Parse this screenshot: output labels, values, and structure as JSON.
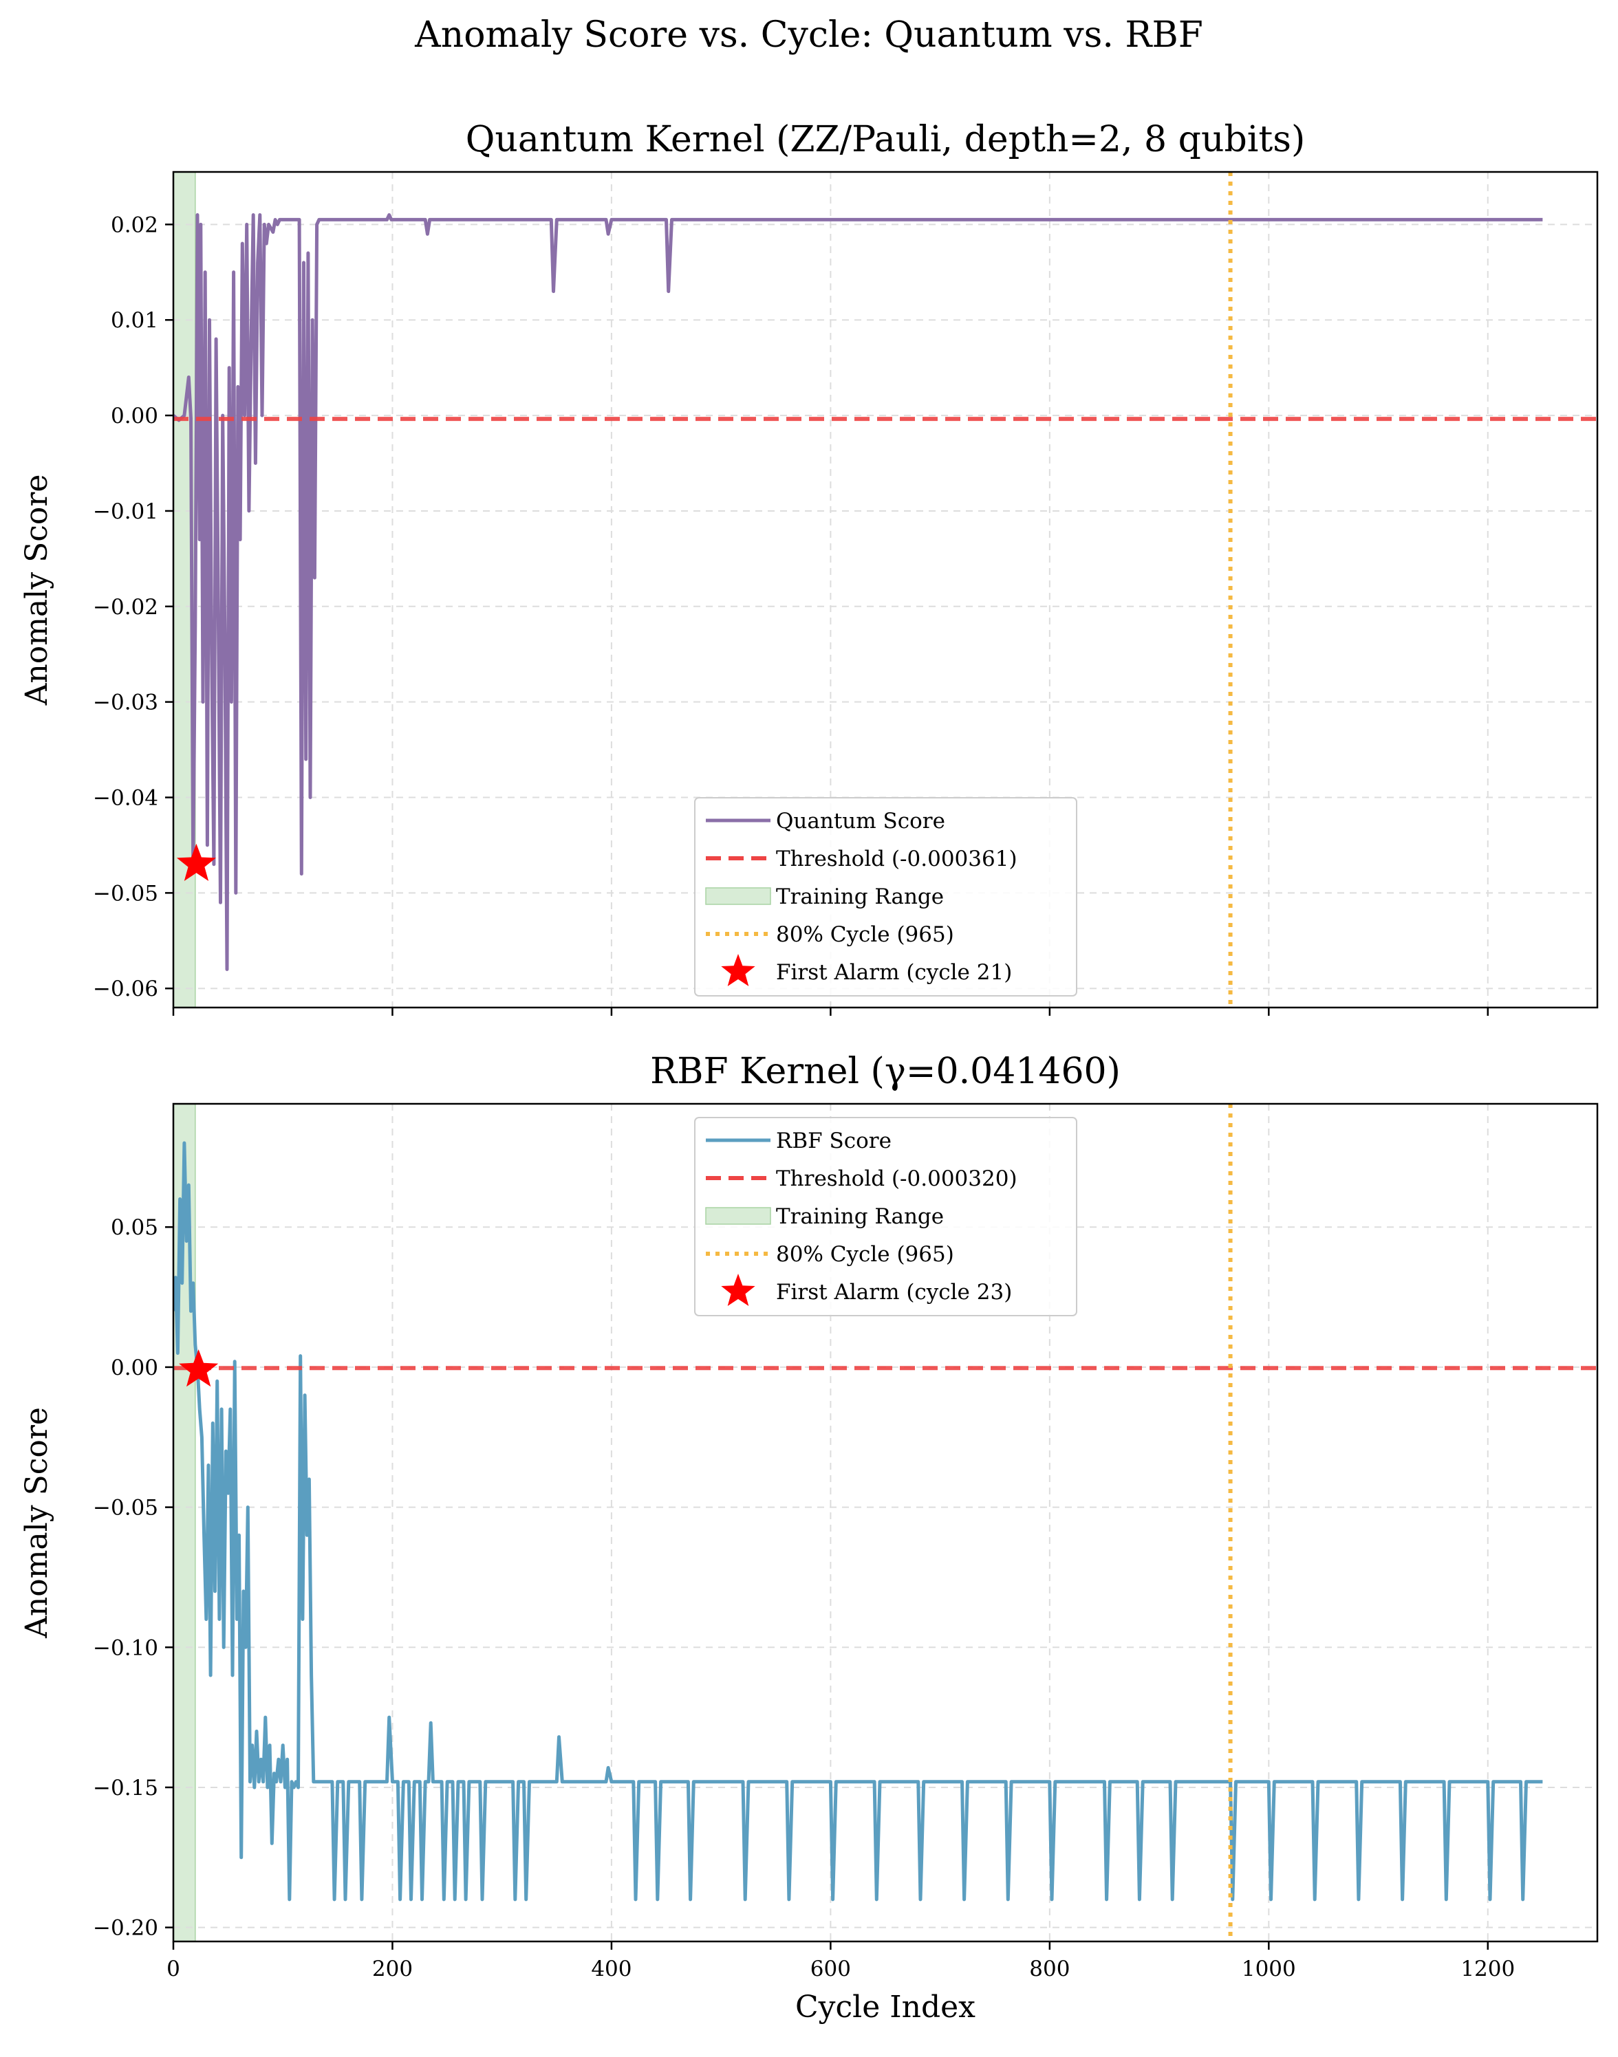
{
  "suptitle": "Anomaly Score vs. Cycle: Quantum vs. RBF",
  "colors": {
    "quantum": "#8a6fa8",
    "rbf": "#5b9ec0",
    "threshold": "#ee4444",
    "training": "#d8ecd6",
    "cycle80": "#f5b942",
    "alarm": "#ff0000",
    "grid": "#dddddd"
  },
  "chart_data": [
    {
      "type": "line",
      "title": "Quantum Kernel (ZZ/Pauli, depth=2, 8 qubits)",
      "xlabel": "",
      "ylabel": "Anomaly Score",
      "xlim": [
        0,
        1300
      ],
      "ylim": [
        -0.062,
        0.0255
      ],
      "xticks": [
        0,
        200,
        400,
        600,
        800,
        1000,
        1200
      ],
      "xtick_labels": [
        "",
        "",
        "",
        "",
        "",
        "",
        ""
      ],
      "yticks": [
        0.02,
        0.01,
        0.0,
        -0.01,
        -0.02,
        -0.03,
        -0.04,
        -0.05,
        -0.06
      ],
      "ytick_labels": [
        "0.02",
        "0.01",
        "0.00",
        "−0.01",
        "−0.02",
        "−0.03",
        "−0.04",
        "−0.05",
        "−0.06"
      ],
      "grid": true,
      "legend_position": "lower-center",
      "series": [
        {
          "name": "Quantum Score",
          "x": [
            0,
            5,
            10,
            14,
            16,
            18,
            20,
            22,
            24,
            25,
            27,
            29,
            31,
            33,
            35,
            37,
            39,
            41,
            43,
            45,
            47,
            49,
            51,
            53,
            55,
            57,
            59,
            61,
            63,
            65,
            67,
            69,
            71,
            73,
            75,
            77,
            79,
            81,
            83,
            85,
            87,
            89,
            91,
            93,
            95,
            97,
            100,
            105,
            110,
            115,
            117,
            119,
            121,
            123,
            125,
            127,
            129,
            131,
            133,
            135,
            137,
            140,
            195,
            197,
            199,
            230,
            232,
            234,
            345,
            347,
            350,
            352,
            355,
            395,
            397,
            400,
            402,
            450,
            452,
            455,
            1250
          ],
          "y": [
            0.0,
            -0.0005,
            0.0,
            0.004,
            -0.0003,
            -0.047,
            -0.022,
            0.021,
            -0.013,
            0.02,
            -0.03,
            0.015,
            -0.045,
            0.01,
            -0.025,
            -0.047,
            0.008,
            -0.02,
            -0.051,
            0.0,
            -0.023,
            -0.058,
            0.005,
            -0.03,
            0.015,
            -0.05,
            0.003,
            -0.013,
            0.018,
            0.0,
            0.02,
            -0.01,
            0.008,
            0.021,
            -0.005,
            0.016,
            0.021,
            0.0,
            0.02,
            0.018,
            0.02,
            0.0196,
            0.0192,
            0.0205,
            0.02,
            0.0205,
            0.0205,
            0.0205,
            0.0205,
            0.0205,
            -0.048,
            0.016,
            -0.036,
            0.017,
            -0.04,
            0.01,
            -0.017,
            0.02,
            0.0205,
            0.0205,
            0.0205,
            0.0205,
            0.0205,
            0.021,
            0.0205,
            0.0205,
            0.019,
            0.0205,
            0.0205,
            0.013,
            0.0205,
            0.0205,
            0.0205,
            0.0205,
            0.019,
            0.0205,
            0.0205,
            0.0205,
            0.013,
            0.0205,
            0.0205
          ]
        }
      ],
      "threshold": {
        "name": "Threshold (-0.000361)",
        "value": -0.000361
      },
      "training_range": {
        "name": "Training Range",
        "x": [
          0,
          20
        ]
      },
      "cycle80": {
        "name": "80% Cycle (965)",
        "x": 965
      },
      "first_alarm": {
        "name": "First Alarm (cycle 21)",
        "x": 21,
        "y": -0.047
      }
    },
    {
      "type": "line",
      "title": "RBF Kernel (γ=0.041460)",
      "xlabel": "Cycle Index",
      "ylabel": "Anomaly Score",
      "xlim": [
        0,
        1300
      ],
      "ylim": [
        -0.205,
        0.094
      ],
      "xticks": [
        0,
        200,
        400,
        600,
        800,
        1000,
        1200
      ],
      "xtick_labels": [
        "0",
        "200",
        "400",
        "600",
        "800",
        "1000",
        "1200"
      ],
      "yticks": [
        0.05,
        0.0,
        -0.05,
        -0.1,
        -0.15,
        -0.2
      ],
      "ytick_labels": [
        "0.05",
        "0.00",
        "−0.05",
        "−0.10",
        "−0.15",
        "−0.20"
      ],
      "grid": true,
      "legend_position": "upper-center",
      "series": [
        {
          "name": "RBF Score",
          "x": [
            0,
            2,
            4,
            6,
            8,
            10,
            12,
            14,
            16,
            18,
            20,
            22,
            24,
            26,
            28,
            30,
            32,
            34,
            36,
            38,
            40,
            42,
            44,
            46,
            48,
            50,
            52,
            54,
            56,
            58,
            60,
            62,
            64,
            66,
            68,
            70,
            72,
            74,
            76,
            78,
            80,
            82,
            84,
            86,
            88,
            90,
            92,
            94,
            96,
            98,
            100,
            102,
            104,
            106,
            108,
            110,
            112,
            114,
            116,
            118,
            120,
            122,
            124,
            126,
            128,
            130,
            132,
            135,
            140,
            145,
            147,
            150,
            155,
            157,
            160,
            170,
            172,
            175,
            195,
            197,
            200,
            205,
            207,
            210,
            215,
            217,
            220,
            225,
            227,
            230,
            233,
            235,
            237,
            240,
            245,
            247,
            250,
            255,
            257,
            260,
            265,
            267,
            270,
            280,
            282,
            285,
            310,
            312,
            315,
            320,
            322,
            325,
            350,
            352,
            355,
            395,
            397,
            400,
            420,
            422,
            425,
            440,
            442,
            445,
            470,
            472,
            475,
            520,
            522,
            525,
            560,
            562,
            565,
            600,
            602,
            605,
            640,
            642,
            645,
            680,
            682,
            685,
            720,
            722,
            725,
            760,
            762,
            765,
            800,
            802,
            805,
            850,
            852,
            855,
            880,
            882,
            885,
            910,
            912,
            915,
            965,
            967,
            970,
            1000,
            1002,
            1005,
            1040,
            1042,
            1045,
            1080,
            1082,
            1085,
            1120,
            1122,
            1125,
            1160,
            1162,
            1165,
            1200,
            1202,
            1205,
            1230,
            1232,
            1235,
            1250
          ],
          "y": [
            0.02,
            0.032,
            0.005,
            0.06,
            0.03,
            0.08,
            0.045,
            0.065,
            0.02,
            0.03,
            0.008,
            0.0,
            -0.015,
            -0.025,
            -0.06,
            -0.09,
            -0.035,
            -0.11,
            -0.02,
            -0.08,
            -0.005,
            -0.09,
            -0.015,
            -0.1,
            -0.03,
            -0.045,
            -0.015,
            -0.11,
            0.002,
            -0.09,
            -0.06,
            -0.175,
            -0.08,
            -0.1,
            -0.05,
            -0.148,
            -0.135,
            -0.15,
            -0.13,
            -0.148,
            -0.14,
            -0.148,
            -0.125,
            -0.15,
            -0.135,
            -0.17,
            -0.145,
            -0.148,
            -0.14,
            -0.148,
            -0.135,
            -0.15,
            -0.14,
            -0.19,
            -0.148,
            -0.15,
            -0.148,
            -0.15,
            0.004,
            -0.09,
            -0.01,
            -0.06,
            -0.04,
            -0.11,
            -0.148,
            -0.148,
            -0.148,
            -0.148,
            -0.148,
            -0.148,
            -0.19,
            -0.148,
            -0.148,
            -0.19,
            -0.148,
            -0.148,
            -0.19,
            -0.148,
            -0.148,
            -0.125,
            -0.148,
            -0.148,
            -0.19,
            -0.148,
            -0.148,
            -0.19,
            -0.148,
            -0.148,
            -0.19,
            -0.148,
            -0.148,
            -0.127,
            -0.148,
            -0.148,
            -0.148,
            -0.19,
            -0.148,
            -0.148,
            -0.19,
            -0.148,
            -0.148,
            -0.19,
            -0.148,
            -0.148,
            -0.19,
            -0.148,
            -0.148,
            -0.19,
            -0.148,
            -0.148,
            -0.19,
            -0.148,
            -0.148,
            -0.132,
            -0.148,
            -0.148,
            -0.143,
            -0.148,
            -0.148,
            -0.19,
            -0.148,
            -0.148,
            -0.19,
            -0.148,
            -0.148,
            -0.19,
            -0.148,
            -0.148,
            -0.19,
            -0.148,
            -0.148,
            -0.19,
            -0.148,
            -0.148,
            -0.19,
            -0.148,
            -0.148,
            -0.19,
            -0.148,
            -0.148,
            -0.19,
            -0.148,
            -0.148,
            -0.19,
            -0.148,
            -0.148,
            -0.19,
            -0.148,
            -0.148,
            -0.19,
            -0.148,
            -0.148,
            -0.19,
            -0.148,
            -0.148,
            -0.19,
            -0.148,
            -0.148,
            -0.19,
            -0.148,
            -0.148,
            -0.19,
            -0.148,
            -0.148,
            -0.19,
            -0.148,
            -0.148,
            -0.19,
            -0.148,
            -0.148,
            -0.19,
            -0.148,
            -0.148,
            -0.19,
            -0.148,
            -0.148,
            -0.19,
            -0.148,
            -0.148,
            -0.19,
            -0.148,
            -0.148,
            -0.19,
            -0.148,
            -0.148
          ]
        }
      ],
      "threshold": {
        "name": "Threshold (-0.000320)",
        "value": -0.00032
      },
      "training_range": {
        "name": "Training Range",
        "x": [
          0,
          20
        ]
      },
      "cycle80": {
        "name": "80% Cycle (965)",
        "x": 965
      },
      "first_alarm": {
        "name": "First Alarm (cycle 23)",
        "x": 23,
        "y": -0.001
      }
    }
  ]
}
